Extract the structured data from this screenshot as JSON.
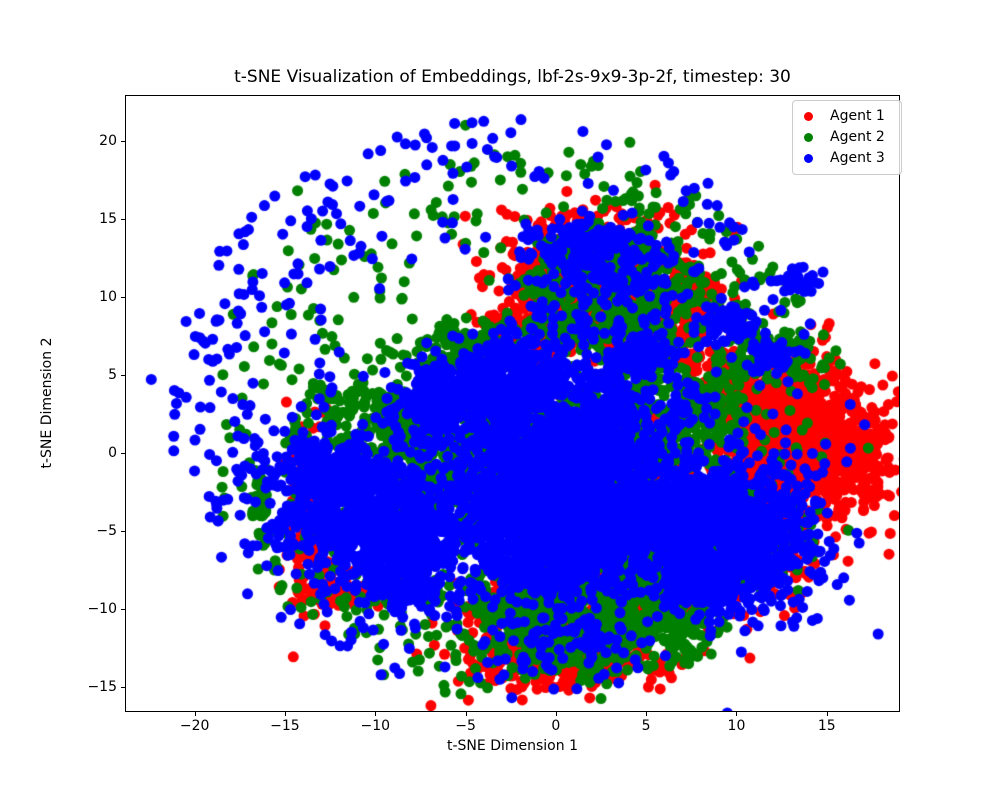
{
  "figure": {
    "background": "#ffffff",
    "frame_color": "#000000"
  },
  "chart_data": {
    "type": "scatter",
    "title": "t-SNE Visualization of Embeddings, lbf-2s-9x9-3p-2f, timestep: 30",
    "xlabel": "t-SNE Dimension 1",
    "ylabel": "t-SNE Dimension 2",
    "xlim": [
      -23.8,
      19.0
    ],
    "ylim": [
      -16.55,
      22.87
    ],
    "xticks": [
      {
        "v": -20,
        "label": "−20"
      },
      {
        "v": -15,
        "label": "−15"
      },
      {
        "v": -10,
        "label": "−10"
      },
      {
        "v": -5,
        "label": "−5"
      },
      {
        "v": 0,
        "label": "0"
      },
      {
        "v": 5,
        "label": "5"
      },
      {
        "v": 10,
        "label": "10"
      },
      {
        "v": 15,
        "label": "15"
      }
    ],
    "yticks": [
      {
        "v": 20,
        "label": "20"
      },
      {
        "v": 15,
        "label": "15"
      },
      {
        "v": 10,
        "label": "10"
      },
      {
        "v": 5,
        "label": "5"
      },
      {
        "v": 0,
        "label": "0"
      },
      {
        "v": -5,
        "label": "−5"
      },
      {
        "v": -10,
        "label": "−10"
      },
      {
        "v": -15,
        "label": "−15"
      }
    ],
    "grid": false,
    "legend": {
      "position": "upper right"
    },
    "marker": {
      "shape": "circle",
      "radius_px": 5.5
    },
    "series": [
      {
        "name": "Agent 1",
        "color": "#ff0000",
        "clusters": [
          {
            "type": "gauss",
            "cx": 2.2,
            "cy": 10.8,
            "rx": 2.9,
            "ry": 2.2,
            "rot": 0,
            "n": 800
          },
          {
            "type": "gauss",
            "cx": 4.8,
            "cy": 8.6,
            "rx": 1.6,
            "ry": 1.3,
            "rot": 0,
            "n": 200
          },
          {
            "type": "gauss",
            "cx": -0.3,
            "cy": 9.0,
            "rx": 1.0,
            "ry": 1.5,
            "rot": 0,
            "n": 120
          },
          {
            "type": "gauss",
            "cx": 7.3,
            "cy": 10.3,
            "rx": 0.8,
            "ry": 0.6,
            "rot": 0,
            "n": 40
          },
          {
            "type": "gauss",
            "cx": 9.3,
            "cy": 5.2,
            "rx": 1.1,
            "ry": 1.3,
            "rot": 0,
            "n": 80
          },
          {
            "type": "gauss",
            "cx": 13.3,
            "cy": 0.8,
            "rx": 2.4,
            "ry": 2.6,
            "rot": 0,
            "n": 700
          },
          {
            "type": "gauss",
            "cx": 15.7,
            "cy": -0.3,
            "rx": 1.4,
            "ry": 1.7,
            "rot": 0,
            "n": 200
          },
          {
            "type": "gauss",
            "cx": 11.8,
            "cy": 3.6,
            "rx": 1.5,
            "ry": 1.1,
            "rot": 0,
            "n": 150
          },
          {
            "type": "gauss",
            "cx": 10.3,
            "cy": -5.5,
            "rx": 2.4,
            "ry": 2.4,
            "rot": 0,
            "n": 300
          },
          {
            "type": "gauss",
            "cx": 0.6,
            "cy": -11.3,
            "rx": 2.9,
            "ry": 1.7,
            "rot": 0,
            "n": 450
          },
          {
            "type": "gauss",
            "cx": 0.3,
            "cy": -13.3,
            "rx": 2.4,
            "ry": 0.9,
            "rot": 0,
            "n": 220
          },
          {
            "type": "gauss",
            "cx": -13.7,
            "cy": -3.8,
            "rx": 0.7,
            "ry": 2.8,
            "rot": 0,
            "n": 160
          },
          {
            "type": "gauss",
            "cx": -12.3,
            "cy": -8.6,
            "rx": 1.0,
            "ry": 0.8,
            "rot": 0,
            "n": 60
          },
          {
            "type": "gauss",
            "cx": 1.4,
            "cy": -3.2,
            "rx": 1.1,
            "ry": 1.9,
            "rot": 0,
            "n": 90
          },
          {
            "type": "gauss",
            "cx": 4.1,
            "cy": -6.8,
            "rx": 1.4,
            "ry": 0.9,
            "rot": -40,
            "n": 80
          },
          {
            "type": "gauss",
            "cx": 5.9,
            "cy": -0.8,
            "rx": 0.7,
            "ry": 1.4,
            "rot": 0,
            "n": 60
          }
        ],
        "points": [
          [
            -2.4,
            13.5
          ],
          [
            -7.7,
            -12.9
          ],
          [
            -4.8,
            -14.4
          ],
          [
            6.9,
            10.7
          ],
          [
            8.1,
            10.4
          ],
          [
            15.4,
            4.6
          ],
          [
            16.4,
            4.4
          ],
          [
            9.9,
            9.9
          ]
        ]
      },
      {
        "name": "Agent 2",
        "color": "#008000",
        "clusters": [
          {
            "type": "ring",
            "cx": -2.0,
            "cy": 2.0,
            "r1": 11.0,
            "r2": 17.5,
            "a0": 0,
            "a1": 360,
            "n": 300
          },
          {
            "type": "ring",
            "cx": -2.0,
            "cy": 1.5,
            "r1": 12.5,
            "r2": 18.0,
            "a0": 15,
            "a1": 75,
            "n": 60
          },
          {
            "type": "ring",
            "cx": -2.0,
            "cy": 1.5,
            "r1": 12.0,
            "r2": 17.5,
            "a0": 195,
            "a1": 260,
            "n": 50
          },
          {
            "type": "gauss",
            "cx": 3.4,
            "cy": 10.2,
            "rx": 2.7,
            "ry": 2.1,
            "rot": 0,
            "n": 330
          },
          {
            "type": "ring",
            "cx": 2.2,
            "cy": 10.8,
            "r1": 2.6,
            "r2": 3.7,
            "a0": 0,
            "a1": 360,
            "n": 140
          },
          {
            "type": "gauss",
            "cx": -1.2,
            "cy": -0.8,
            "rx": 5.2,
            "ry": 4.3,
            "rot": 0,
            "n": 800
          },
          {
            "type": "gauss",
            "cx": -6.3,
            "cy": 0.8,
            "rx": 1.5,
            "ry": 2.8,
            "rot": 0,
            "n": 180
          },
          {
            "type": "gauss",
            "cx": 4.9,
            "cy": 1.2,
            "rx": 1.2,
            "ry": 3.0,
            "rot": 0,
            "n": 220
          },
          {
            "type": "gauss",
            "cx": 2.4,
            "cy": 2.2,
            "rx": 1.4,
            "ry": 1.4,
            "rot": 0,
            "n": 120
          },
          {
            "type": "gauss",
            "cx": 0.4,
            "cy": -7.0,
            "rx": 2.4,
            "ry": 1.2,
            "rot": 0,
            "n": 150
          },
          {
            "type": "gauss",
            "cx": 0.8,
            "cy": -11.0,
            "rx": 2.6,
            "ry": 1.5,
            "rot": 0,
            "n": 600
          },
          {
            "type": "gauss",
            "cx": 5.4,
            "cy": -8.2,
            "rx": 1.8,
            "ry": 1.0,
            "rot": -40,
            "n": 220
          },
          {
            "type": "gauss",
            "cx": 8.4,
            "cy": 2.6,
            "rx": 1.1,
            "ry": 1.7,
            "rot": 0,
            "n": 130
          },
          {
            "type": "gauss",
            "cx": 10.6,
            "cy": -5.0,
            "rx": 2.0,
            "ry": 1.8,
            "rot": 0,
            "n": 130
          },
          {
            "type": "gauss",
            "cx": -9.6,
            "cy": 1.4,
            "rx": 1.7,
            "ry": 1.2,
            "rot": 0,
            "n": 110
          },
          {
            "type": "gauss",
            "cx": -16.3,
            "cy": -3.2,
            "rx": 0.25,
            "ry": 1.2,
            "rot": 0,
            "n": 35
          },
          {
            "type": "gauss",
            "cx": -4.9,
            "cy": 7.4,
            "rx": 2.4,
            "ry": 0.9,
            "rot": 10,
            "n": 110
          },
          {
            "type": "gauss",
            "cx": -11.9,
            "cy": 3.1,
            "rx": 1.0,
            "ry": 0.9,
            "rot": 0,
            "n": 50
          },
          {
            "type": "gauss",
            "cx": 12.2,
            "cy": 6.1,
            "rx": 1.6,
            "ry": 1.1,
            "rot": 0,
            "n": 70
          },
          {
            "type": "gauss",
            "cx": 6.9,
            "cy": -11.5,
            "rx": 1.1,
            "ry": 0.9,
            "rot": 0,
            "n": 80
          }
        ],
        "points": [
          [
            -5.0,
            21.0
          ],
          [
            4.1,
            19.9
          ],
          [
            -14.3,
            16.8
          ],
          [
            17.3,
            0.3
          ]
        ]
      },
      {
        "name": "Agent 3",
        "color": "#0000ff",
        "clusters": [
          {
            "type": "ring",
            "cx": -3.0,
            "cy": 3.0,
            "r1": 9.5,
            "r2": 18.5,
            "a0": 0,
            "a1": 360,
            "n": 300
          },
          {
            "type": "ring",
            "cx": -3.0,
            "cy": 3.0,
            "r1": 12.0,
            "r2": 18.5,
            "a0": 100,
            "a1": 250,
            "n": 80
          },
          {
            "type": "gauss",
            "cx": 1.8,
            "cy": 13.1,
            "rx": 1.5,
            "ry": 0.9,
            "rot": 0,
            "n": 160
          },
          {
            "type": "gauss",
            "cx": 2.4,
            "cy": 10.4,
            "rx": 2.4,
            "ry": 1.9,
            "rot": 0,
            "n": 130
          },
          {
            "type": "gauss",
            "cx": -3.1,
            "cy": 4.4,
            "rx": 2.3,
            "ry": 1.4,
            "rot": 20,
            "n": 450
          },
          {
            "type": "gauss",
            "cx": 0.6,
            "cy": 0.6,
            "rx": 3.1,
            "ry": 2.7,
            "rot": 0,
            "n": 1100
          },
          {
            "type": "gauss",
            "cx": -1.7,
            "cy": -3.6,
            "rx": 2.7,
            "ry": 1.9,
            "rot": 0,
            "n": 550
          },
          {
            "type": "gauss",
            "cx": 2.4,
            "cy": -4.3,
            "rx": 1.9,
            "ry": 2.4,
            "rot": 0,
            "n": 450
          },
          {
            "type": "gauss",
            "cx": -6.5,
            "cy": 3.3,
            "rx": 1.6,
            "ry": 1.0,
            "rot": 20,
            "n": 180
          },
          {
            "type": "gauss",
            "cx": -0.2,
            "cy": -7.3,
            "rx": 1.8,
            "ry": 1.1,
            "rot": 0,
            "n": 220
          },
          {
            "type": "gauss",
            "cx": -10.4,
            "cy": -4.1,
            "rx": 3.1,
            "ry": 2.1,
            "rot": -38,
            "n": 850
          },
          {
            "type": "gauss",
            "cx": -8.6,
            "cy": -7.9,
            "rx": 1.3,
            "ry": 1.0,
            "rot": 0,
            "n": 150
          },
          {
            "type": "gauss",
            "cx": -12.4,
            "cy": -1.2,
            "rx": 1.5,
            "ry": 0.9,
            "rot": 0,
            "n": 140
          },
          {
            "type": "gauss",
            "cx": 10.4,
            "cy": -5.1,
            "rx": 2.3,
            "ry": 2.5,
            "rot": 0,
            "n": 650
          },
          {
            "type": "gauss",
            "cx": 7.6,
            "cy": -3.2,
            "rx": 1.0,
            "ry": 1.4,
            "rot": 0,
            "n": 140
          },
          {
            "type": "gauss",
            "cx": 8.1,
            "cy": -8.4,
            "rx": 1.2,
            "ry": 0.9,
            "rot": 0,
            "n": 120
          },
          {
            "type": "gauss",
            "cx": 9.6,
            "cy": 8.3,
            "rx": 0.9,
            "ry": 0.7,
            "rot": 0,
            "n": 80
          },
          {
            "type": "gauss",
            "cx": 12.0,
            "cy": 6.3,
            "rx": 0.8,
            "ry": 0.6,
            "rot": 0,
            "n": 40
          },
          {
            "type": "gauss",
            "cx": 0.6,
            "cy": -11.6,
            "rx": 2.4,
            "ry": 1.4,
            "rot": 0,
            "n": 90
          },
          {
            "type": "gauss",
            "cx": 6.8,
            "cy": -6.1,
            "rx": 0.8,
            "ry": 2.1,
            "rot": 25,
            "n": 150
          },
          {
            "type": "gauss",
            "cx": 4.6,
            "cy": 6.6,
            "rx": 1.0,
            "ry": 0.8,
            "rot": 0,
            "n": 90
          },
          {
            "type": "gauss",
            "cx": 13.3,
            "cy": 11.0,
            "rx": 0.8,
            "ry": 0.6,
            "rot": 0,
            "n": 25
          }
        ],
        "points": [
          [
            -22.4,
            4.7
          ],
          [
            17.1,
            1.8
          ],
          [
            16.3,
            3.1
          ],
          [
            1.5,
            20.6
          ]
        ]
      }
    ]
  }
}
